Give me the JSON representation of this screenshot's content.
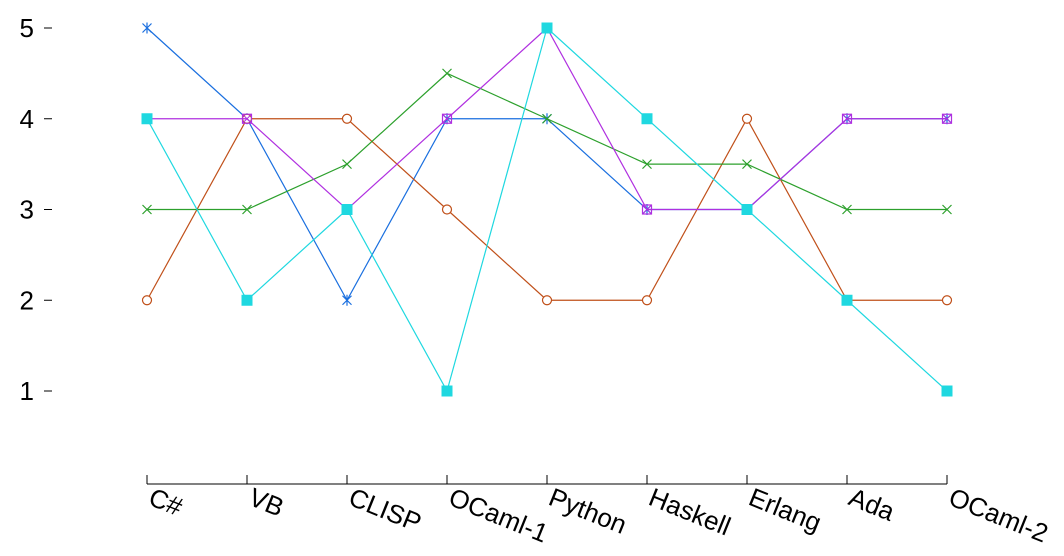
{
  "chart_data": {
    "type": "line",
    "title": "",
    "xlabel": "",
    "ylabel": "",
    "categories": [
      "C#",
      "VB",
      "CLISP",
      "OCaml-1",
      "Python",
      "Haskell",
      "Erlang",
      "Ada",
      "OCaml-2"
    ],
    "yticks": [
      1,
      2,
      3,
      4,
      5
    ],
    "ylim": [
      1,
      5
    ],
    "grid": false,
    "legend": "none",
    "series": [
      {
        "color": "#1a6fdf",
        "marker": "star",
        "values": [
          5,
          4,
          2,
          4,
          4,
          3,
          3,
          4,
          4
        ]
      },
      {
        "color": "#c0501a",
        "marker": "circle",
        "values": [
          2,
          4,
          4,
          3,
          2,
          2,
          4,
          2,
          2
        ]
      },
      {
        "color": "#2ca02c",
        "marker": "x",
        "values": [
          3,
          3,
          3.5,
          4.5,
          4,
          3.5,
          3.5,
          3,
          3
        ]
      },
      {
        "color": "#b030e0",
        "marker": "square-open",
        "values": [
          4,
          4,
          3,
          4,
          5,
          3,
          3,
          4,
          4
        ]
      },
      {
        "color": "#1fd8e0",
        "marker": "square",
        "values": [
          4,
          2,
          3,
          1,
          5,
          4,
          3,
          2,
          1
        ]
      }
    ]
  }
}
